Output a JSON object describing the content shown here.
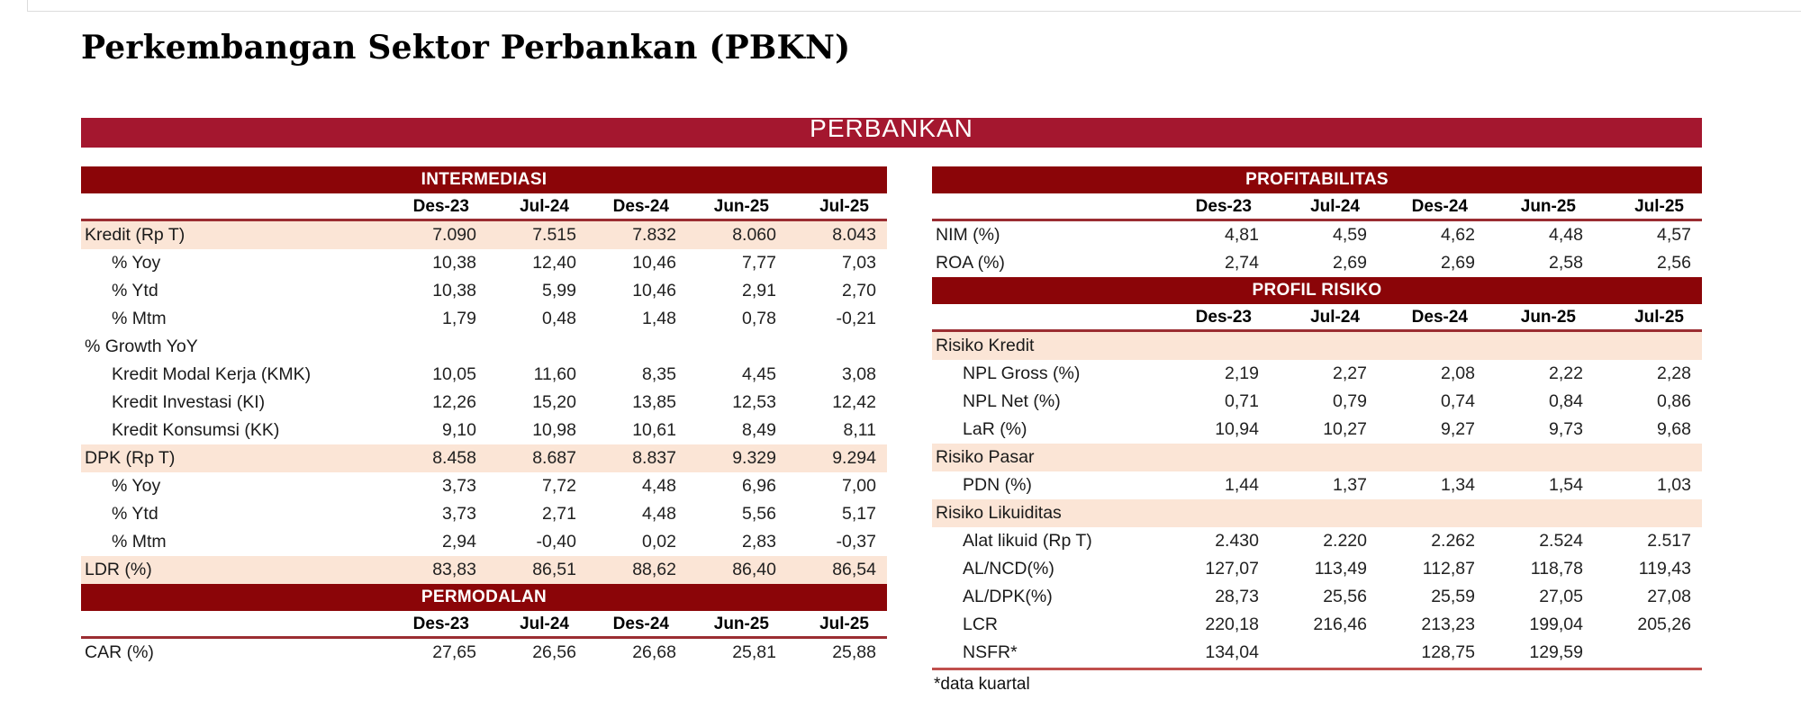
{
  "page": {
    "title": "Perkembangan Sektor Perbankan (PBKN)",
    "banner_label": "PERBANKAN",
    "footnote": "*data kuartal"
  },
  "columns": [
    "Des-23",
    "Jul-24",
    "Des-24",
    "Jun-25",
    "Jul-25"
  ],
  "colors": {
    "banner": "#A4172F",
    "section_header": "#8B0508",
    "row_highlight": "#FBE5D6",
    "header_rule": "#9B2D32",
    "bottom_rule": "#C0504D"
  },
  "chart_data": [
    {
      "type": "table",
      "title": "INTERMEDIASI",
      "columns": [
        "Des-23",
        "Jul-24",
        "Des-24",
        "Jun-25",
        "Jul-25"
      ],
      "rows": [
        {
          "label": "Kredit (Rp T)",
          "indent": 0,
          "highlight": true,
          "values": [
            "7.090",
            "7.515",
            "7.832",
            "8.060",
            "8.043"
          ]
        },
        {
          "label": "% Yoy",
          "indent": 1,
          "highlight": false,
          "values": [
            "10,38",
            "12,40",
            "10,46",
            "7,77",
            "7,03"
          ]
        },
        {
          "label": "% Ytd",
          "indent": 1,
          "highlight": false,
          "values": [
            "10,38",
            "5,99",
            "10,46",
            "2,91",
            "2,70"
          ]
        },
        {
          "label": "% Mtm",
          "indent": 1,
          "highlight": false,
          "values": [
            "1,79",
            "0,48",
            "1,48",
            "0,78",
            "-0,21"
          ]
        },
        {
          "label": "% Growth YoY",
          "indent": 0,
          "highlight": false,
          "values": [
            "",
            "",
            "",
            "",
            ""
          ]
        },
        {
          "label": "Kredit Modal Kerja (KMK)",
          "indent": 1,
          "highlight": false,
          "values": [
            "10,05",
            "11,60",
            "8,35",
            "4,45",
            "3,08"
          ]
        },
        {
          "label": "Kredit Investasi (KI)",
          "indent": 1,
          "highlight": false,
          "values": [
            "12,26",
            "15,20",
            "13,85",
            "12,53",
            "12,42"
          ]
        },
        {
          "label": "Kredit Konsumsi (KK)",
          "indent": 1,
          "highlight": false,
          "values": [
            "9,10",
            "10,98",
            "10,61",
            "8,49",
            "8,11"
          ]
        },
        {
          "label": "DPK (Rp T)",
          "indent": 0,
          "highlight": true,
          "values": [
            "8.458",
            "8.687",
            "8.837",
            "9.329",
            "9.294"
          ]
        },
        {
          "label": "% Yoy",
          "indent": 1,
          "highlight": false,
          "values": [
            "3,73",
            "7,72",
            "4,48",
            "6,96",
            "7,00"
          ]
        },
        {
          "label": "% Ytd",
          "indent": 1,
          "highlight": false,
          "values": [
            "3,73",
            "2,71",
            "4,48",
            "5,56",
            "5,17"
          ]
        },
        {
          "label": "% Mtm",
          "indent": 1,
          "highlight": false,
          "values": [
            "2,94",
            "-0,40",
            "0,02",
            "2,83",
            "-0,37"
          ]
        },
        {
          "label": "LDR (%)",
          "indent": 0,
          "highlight": true,
          "values": [
            "83,83",
            "86,51",
            "88,62",
            "86,40",
            "86,54"
          ]
        }
      ],
      "bottom_rule": false
    },
    {
      "type": "table",
      "title": "PERMODALAN",
      "columns": [
        "Des-23",
        "Jul-24",
        "Des-24",
        "Jun-25",
        "Jul-25"
      ],
      "rows": [
        {
          "label": "CAR (%)",
          "indent": 0,
          "highlight": false,
          "values": [
            "27,65",
            "26,56",
            "26,68",
            "25,81",
            "25,88"
          ]
        }
      ],
      "bottom_rule": false
    },
    {
      "type": "table",
      "title": "PROFITABILITAS",
      "columns": [
        "Des-23",
        "Jul-24",
        "Des-24",
        "Jun-25",
        "Jul-25"
      ],
      "rows": [
        {
          "label": "NIM (%)",
          "indent": 0,
          "highlight": false,
          "values": [
            "4,81",
            "4,59",
            "4,62",
            "4,48",
            "4,57"
          ]
        },
        {
          "label": "ROA (%)",
          "indent": 0,
          "highlight": false,
          "values": [
            "2,74",
            "2,69",
            "2,69",
            "2,58",
            "2,56"
          ]
        }
      ],
      "bottom_rule": false
    },
    {
      "type": "table",
      "title": "PROFIL RISIKO",
      "columns": [
        "Des-23",
        "Jul-24",
        "Des-24",
        "Jun-25",
        "Jul-25"
      ],
      "rows": [
        {
          "label": "Risiko Kredit",
          "indent": 0,
          "highlight": true,
          "section": true,
          "values": [
            "",
            "",
            "",
            "",
            ""
          ]
        },
        {
          "label": "NPL Gross (%)",
          "indent": 1,
          "highlight": false,
          "values": [
            "2,19",
            "2,27",
            "2,08",
            "2,22",
            "2,28"
          ]
        },
        {
          "label": "NPL Net (%)",
          "indent": 1,
          "highlight": false,
          "values": [
            "0,71",
            "0,79",
            "0,74",
            "0,84",
            "0,86"
          ]
        },
        {
          "label": "LaR (%)",
          "indent": 1,
          "highlight": false,
          "values": [
            "10,94",
            "10,27",
            "9,27",
            "9,73",
            "9,68"
          ]
        },
        {
          "label": "Risiko Pasar",
          "indent": 0,
          "highlight": true,
          "section": true,
          "values": [
            "",
            "",
            "",
            "",
            ""
          ]
        },
        {
          "label": "PDN (%)",
          "indent": 1,
          "highlight": false,
          "values": [
            "1,44",
            "1,37",
            "1,34",
            "1,54",
            "1,03"
          ]
        },
        {
          "label": "Risiko Likuiditas",
          "indent": 0,
          "highlight": true,
          "section": true,
          "values": [
            "",
            "",
            "",
            "",
            ""
          ]
        },
        {
          "label": "Alat likuid (Rp T)",
          "indent": 1,
          "highlight": false,
          "values": [
            "2.430",
            "2.220",
            "2.262",
            "2.524",
            "2.517"
          ]
        },
        {
          "label": "AL/NCD(%)",
          "indent": 1,
          "highlight": false,
          "values": [
            "127,07",
            "113,49",
            "112,87",
            "118,78",
            "119,43"
          ]
        },
        {
          "label": "AL/DPK(%)",
          "indent": 1,
          "highlight": false,
          "values": [
            "28,73",
            "25,56",
            "25,59",
            "27,05",
            "27,08"
          ]
        },
        {
          "label": "LCR",
          "indent": 1,
          "highlight": false,
          "values": [
            "220,18",
            "216,46",
            "213,23",
            "199,04",
            "205,26"
          ]
        },
        {
          "label": "NSFR*",
          "indent": 1,
          "highlight": false,
          "values": [
            "134,04",
            "",
            "128,75",
            "129,59",
            ""
          ]
        }
      ],
      "bottom_rule": true
    }
  ]
}
